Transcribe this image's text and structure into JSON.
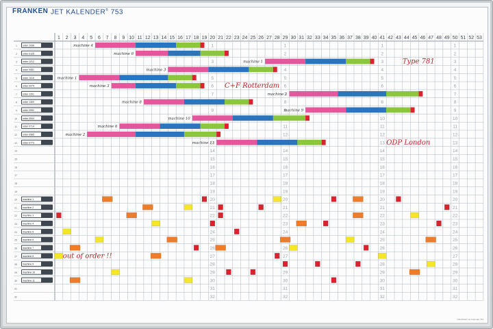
{
  "board": {
    "brand": "FRANKEN",
    "title": "JET KALENDER",
    "title_sup": "®",
    "model": "753",
    "footer_fine_print": "FRANKEN Jet Kalender 753"
  },
  "weeks": [
    "1",
    "2",
    "3",
    "4",
    "5",
    "6",
    "7",
    "8",
    "9",
    "10",
    "11",
    "12",
    "13",
    "14",
    "15",
    "16",
    "17",
    "18",
    "19",
    "20",
    "21",
    "22",
    "23",
    "24",
    "25",
    "26",
    "27",
    "28",
    "29",
    "30",
    "31",
    "32",
    "33",
    "34",
    "35",
    "36",
    "37",
    "38",
    "39",
    "40",
    "41",
    "42",
    "43",
    "44",
    "45",
    "46",
    "47",
    "48",
    "49",
    "50",
    "51",
    "52",
    "53"
  ],
  "row_numbers": [
    "1",
    "2",
    "3",
    "4",
    "5",
    "6",
    "7",
    "8",
    "9",
    "10",
    "11",
    "12",
    "13",
    "14",
    "15",
    "16",
    "17",
    "18",
    "19",
    "20",
    "21",
    "22",
    "23",
    "24",
    "25",
    "26",
    "27",
    "28",
    "29",
    "30",
    "31",
    "32"
  ],
  "order_labels": [
    "order 2036",
    "order 0125",
    "order 1212",
    "order 0951",
    "order 1016",
    "order 0074",
    "order 1201",
    "order 1300",
    "order 0952",
    "order 0544",
    "order 0714",
    "order 0585",
    "order 0773"
  ],
  "machine_labels": [
    "machine 1",
    "machine 2",
    "machine 3",
    "machine 4",
    "machine 5",
    "machine 6",
    "machine 7",
    "machine 8",
    "machine 9",
    "machine 10",
    "machine 11"
  ],
  "colors": {
    "pink": "#e3589c",
    "blue": "#2a75bd",
    "green": "#8cc63f",
    "red": "#d9232e",
    "orange": "#ee7d2b",
    "yellow": "#f5e62a",
    "grid": "#aeb8c0",
    "number": "#9aa3ab"
  },
  "bars": [
    {
      "row": 1,
      "label": "machine 4",
      "start": 6,
      "segments": [
        {
          "color": "pink",
          "weeks": 5
        },
        {
          "color": "blue",
          "weeks": 5
        },
        {
          "color": "green",
          "weeks": 3
        },
        {
          "color": "red",
          "weeks": 0.5
        }
      ]
    },
    {
      "row": 2,
      "label": "machine 6",
      "start": 11,
      "segments": [
        {
          "color": "pink",
          "weeks": 4
        },
        {
          "color": "blue",
          "weeks": 4
        },
        {
          "color": "green",
          "weeks": 3
        },
        {
          "color": "red",
          "weeks": 0.5
        }
      ]
    },
    {
      "row": 3,
      "label": "machine 1",
      "start": 27,
      "segments": [
        {
          "color": "pink",
          "weeks": 5
        },
        {
          "color": "blue",
          "weeks": 5
        },
        {
          "color": "green",
          "weeks": 3
        },
        {
          "color": "red",
          "weeks": 0.5
        }
      ]
    },
    {
      "row": 4,
      "label": "machine 3",
      "start": 15,
      "segments": [
        {
          "color": "pink",
          "weeks": 5
        },
        {
          "color": "blue",
          "weeks": 5
        },
        {
          "color": "green",
          "weeks": 3
        },
        {
          "color": "red",
          "weeks": 0.5
        }
      ]
    },
    {
      "row": 5,
      "label": "machine 1",
      "start": 4,
      "segments": [
        {
          "color": "pink",
          "weeks": 5
        },
        {
          "color": "blue",
          "weeks": 6
        },
        {
          "color": "green",
          "weeks": 3
        },
        {
          "color": "red",
          "weeks": 0.5
        }
      ]
    },
    {
      "row": 6,
      "label": "machine 3",
      "start": 8,
      "segments": [
        {
          "color": "pink",
          "weeks": 3
        },
        {
          "color": "blue",
          "weeks": 5
        },
        {
          "color": "green",
          "weeks": 3
        },
        {
          "color": "red",
          "weeks": 0.5
        }
      ]
    },
    {
      "row": 7,
      "label": "machine 2",
      "start": 30,
      "segments": [
        {
          "color": "pink",
          "weeks": 6
        },
        {
          "color": "blue",
          "weeks": 6
        },
        {
          "color": "green",
          "weeks": 4
        },
        {
          "color": "red",
          "weeks": 0.5
        }
      ]
    },
    {
      "row": 8,
      "label": "machine 8",
      "start": 12,
      "segments": [
        {
          "color": "pink",
          "weeks": 5
        },
        {
          "color": "blue",
          "weeks": 5
        },
        {
          "color": "green",
          "weeks": 3
        },
        {
          "color": "red",
          "weeks": 0.5
        }
      ]
    },
    {
      "row": 9,
      "label": "machine 9",
      "start": 32,
      "segments": [
        {
          "color": "pink",
          "weeks": 5
        },
        {
          "color": "blue",
          "weeks": 5
        },
        {
          "color": "green",
          "weeks": 3
        },
        {
          "color": "red",
          "weeks": 0.5
        }
      ]
    },
    {
      "row": 10,
      "label": "machine 10",
      "start": 18,
      "segments": [
        {
          "color": "pink",
          "weeks": 5
        },
        {
          "color": "blue",
          "weeks": 5
        },
        {
          "color": "green",
          "weeks": 4
        },
        {
          "color": "red",
          "weeks": 0.5
        }
      ]
    },
    {
      "row": 11,
      "label": "machine 6",
      "start": 9,
      "segments": [
        {
          "color": "pink",
          "weeks": 5
        },
        {
          "color": "blue",
          "weeks": 5
        },
        {
          "color": "green",
          "weeks": 3
        },
        {
          "color": "red",
          "weeks": 0.5
        }
      ]
    },
    {
      "row": 12,
      "label": "machine 2",
      "start": 5,
      "segments": [
        {
          "color": "pink",
          "weeks": 6
        },
        {
          "color": "blue",
          "weeks": 6
        },
        {
          "color": "green",
          "weeks": 4
        },
        {
          "color": "red",
          "weeks": 0.5
        }
      ]
    },
    {
      "row": 13,
      "label": "machine 11",
      "start": 21,
      "segments": [
        {
          "color": "pink",
          "weeks": 5
        },
        {
          "color": "blue",
          "weeks": 5
        },
        {
          "color": "green",
          "weeks": 3
        },
        {
          "color": "red",
          "weeks": 0.5
        }
      ]
    }
  ],
  "notes": [
    {
      "text": "Type 781",
      "week": 44,
      "row": 3
    },
    {
      "text": "C+F Rotterdam",
      "week": 22,
      "row": 6
    },
    {
      "text": "ODP London",
      "week": 42,
      "row": 13
    },
    {
      "text": "out of order !!",
      "week": 2,
      "row": 27
    }
  ],
  "markers": [
    {
      "color": "orange",
      "week": 7,
      "row": 20
    },
    {
      "color": "red",
      "week": 19,
      "row": 20
    },
    {
      "color": "yellow",
      "week": 28,
      "row": 20
    },
    {
      "color": "red",
      "week": 35,
      "row": 20
    },
    {
      "color": "orange",
      "week": 38,
      "row": 20
    },
    {
      "color": "red",
      "week": 43,
      "row": 20
    },
    {
      "color": "orange",
      "week": 12,
      "row": 21
    },
    {
      "color": "yellow",
      "week": 17,
      "row": 21
    },
    {
      "color": "red",
      "week": 21,
      "row": 21
    },
    {
      "color": "red",
      "week": 26,
      "row": 21
    },
    {
      "color": "red",
      "week": 49,
      "row": 21
    },
    {
      "color": "red",
      "week": 1,
      "row": 22
    },
    {
      "color": "orange",
      "week": 10,
      "row": 22
    },
    {
      "color": "red",
      "week": 21,
      "row": 22
    },
    {
      "color": "orange",
      "week": 38,
      "row": 22
    },
    {
      "color": "yellow",
      "week": 45,
      "row": 22
    },
    {
      "color": "yellow",
      "week": 13,
      "row": 23
    },
    {
      "color": "red",
      "week": 20,
      "row": 23
    },
    {
      "color": "orange",
      "week": 31,
      "row": 23
    },
    {
      "color": "red",
      "week": 34,
      "row": 23
    },
    {
      "color": "red",
      "week": 48,
      "row": 23
    },
    {
      "color": "yellow",
      "week": 2,
      "row": 24
    },
    {
      "color": "red",
      "week": 23,
      "row": 24
    },
    {
      "color": "yellow",
      "week": 6,
      "row": 25
    },
    {
      "color": "orange",
      "week": 15,
      "row": 25
    },
    {
      "color": "orange",
      "week": 29,
      "row": 25
    },
    {
      "color": "yellow",
      "week": 37,
      "row": 25
    },
    {
      "color": "orange",
      "week": 47,
      "row": 25
    },
    {
      "color": "orange",
      "week": 3,
      "row": 26
    },
    {
      "color": "red",
      "week": 18,
      "row": 26
    },
    {
      "color": "orange",
      "week": 21,
      "row": 26
    },
    {
      "color": "yellow",
      "week": 30,
      "row": 26
    },
    {
      "color": "red",
      "week": 39,
      "row": 26
    },
    {
      "color": "yellow",
      "week": 1,
      "row": 27
    },
    {
      "color": "orange",
      "week": 13,
      "row": 27
    },
    {
      "color": "red",
      "week": 28,
      "row": 27
    },
    {
      "color": "yellow",
      "week": 41,
      "row": 27
    },
    {
      "color": "red",
      "week": 29,
      "row": 28
    },
    {
      "color": "red",
      "week": 33,
      "row": 28
    },
    {
      "color": "red",
      "week": 38,
      "row": 28
    },
    {
      "color": "yellow",
      "week": 47,
      "row": 28
    },
    {
      "color": "yellow",
      "week": 8,
      "row": 29
    },
    {
      "color": "red",
      "week": 22,
      "row": 29
    },
    {
      "color": "red",
      "week": 25,
      "row": 29
    },
    {
      "color": "orange",
      "week": 45,
      "row": 29
    },
    {
      "color": "orange",
      "week": 3,
      "row": 30
    },
    {
      "color": "yellow",
      "week": 17,
      "row": 30
    },
    {
      "color": "red",
      "week": 35,
      "row": 30
    }
  ]
}
